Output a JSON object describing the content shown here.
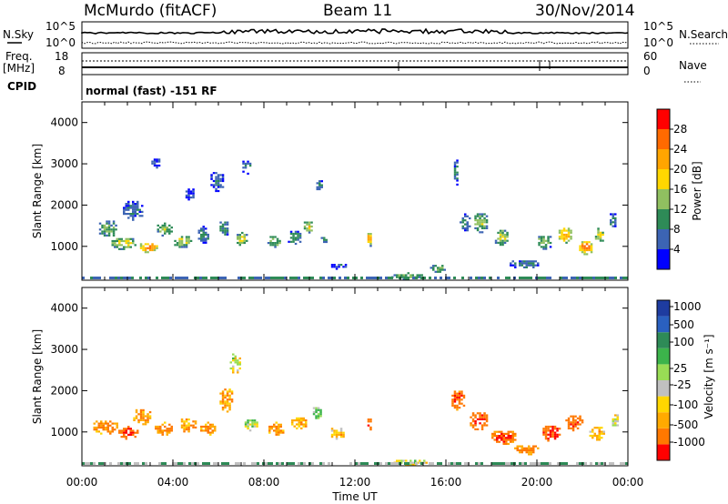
{
  "header": {
    "station": "McMurdo (fitACF)",
    "beam": "Beam 11",
    "date": "30/Nov/2014"
  },
  "top_panels": {
    "nsky_label": "N.Sky",
    "nsearch_label": "N.Search",
    "nsky_ticks": [
      "10^5",
      "10^0"
    ],
    "nsearch_ticks": [
      "10^5",
      "10^0"
    ],
    "freq_label": "Freq.",
    "freq_unit": "[MHz]",
    "freq_ticks": [
      "18",
      "8"
    ],
    "nave_label": "Nave",
    "nave_ticks": [
      "60",
      "0"
    ],
    "cpid_label": "CPID",
    "cpid_text": "normal (fast) -151 RF"
  },
  "axes": {
    "ylabel": "Slant Range [km]",
    "xlabel": "Time UT",
    "yticks": [
      "1000",
      "2000",
      "3000",
      "4000"
    ],
    "ytick_values": [
      1000,
      2000,
      3000,
      4000
    ],
    "ylim": [
      180,
      4500
    ],
    "xticks": [
      "00:00",
      "04:00",
      "08:00",
      "12:00",
      "16:00",
      "20:00",
      "00:00"
    ],
    "xtick_hours": [
      0,
      4,
      8,
      12,
      16,
      20,
      24
    ],
    "xlim_hours": [
      0,
      24
    ]
  },
  "colorbars": {
    "power": {
      "label": "Power [dB]",
      "tick_labels": [
        "4",
        "8",
        "12",
        "16",
        "20",
        "24",
        "28"
      ],
      "tick_values": [
        4,
        8,
        12,
        16,
        20,
        24,
        28
      ],
      "range": [
        0,
        32
      ],
      "colors": [
        "#0000ff",
        "#3c64b4",
        "#2e8b57",
        "#90c060",
        "#ffd700",
        "#ffa500",
        "#ff6a00",
        "#ff0000"
      ]
    },
    "velocity": {
      "label": "Velocity [m s⁻¹]",
      "tick_labels": [
        "1000",
        "500",
        "100",
        "25",
        "-25",
        "-100",
        "-500",
        "-1000"
      ],
      "colors": [
        "#1e3ca0",
        "#2a60c0",
        "#2e8b57",
        "#3cb44b",
        "#99dd55",
        "#c0c0c0",
        "#ffd700",
        "#ffaa00",
        "#ff7800",
        "#ff0000"
      ]
    }
  },
  "chart_data": [
    {
      "type": "heatmap",
      "name": "power",
      "note_x": "time in hours UT",
      "note_y": "slant range in km",
      "value_unit": "dB",
      "blobs": [
        {
          "t": 1.1,
          "r": 1450,
          "w": 0.9,
          "h": 450,
          "v": 12
        },
        {
          "t": 1.8,
          "r": 1100,
          "w": 1.2,
          "h": 300,
          "v": 18
        },
        {
          "t": 2.9,
          "r": 1000,
          "w": 0.9,
          "h": 250,
          "v": 26
        },
        {
          "t": 2.2,
          "r": 1900,
          "w": 1.0,
          "h": 500,
          "v": 8
        },
        {
          "t": 3.6,
          "r": 1450,
          "w": 0.8,
          "h": 350,
          "v": 14
        },
        {
          "t": 3.2,
          "r": 3050,
          "w": 0.5,
          "h": 250,
          "v": 6
        },
        {
          "t": 4.4,
          "r": 1150,
          "w": 0.9,
          "h": 300,
          "v": 16
        },
        {
          "t": 4.7,
          "r": 2300,
          "w": 0.5,
          "h": 300,
          "v": 6
        },
        {
          "t": 5.3,
          "r": 1300,
          "w": 0.6,
          "h": 400,
          "v": 9
        },
        {
          "t": 5.9,
          "r": 2600,
          "w": 0.7,
          "h": 500,
          "v": 7
        },
        {
          "t": 6.2,
          "r": 1450,
          "w": 0.5,
          "h": 400,
          "v": 10
        },
        {
          "t": 7.0,
          "r": 1200,
          "w": 0.6,
          "h": 300,
          "v": 18
        },
        {
          "t": 7.2,
          "r": 2950,
          "w": 0.5,
          "h": 350,
          "v": 8
        },
        {
          "t": 8.4,
          "r": 1150,
          "w": 0.7,
          "h": 300,
          "v": 14
        },
        {
          "t": 9.3,
          "r": 1250,
          "w": 0.7,
          "h": 350,
          "v": 10
        },
        {
          "t": 9.9,
          "r": 1500,
          "w": 0.5,
          "h": 300,
          "v": 18
        },
        {
          "t": 10.4,
          "r": 2500,
          "w": 0.4,
          "h": 300,
          "v": 7
        },
        {
          "t": 10.6,
          "r": 1200,
          "w": 0.4,
          "h": 250,
          "v": 9
        },
        {
          "t": 11.3,
          "r": 550,
          "w": 0.9,
          "h": 150,
          "v": 6
        },
        {
          "t": 12.6,
          "r": 1200,
          "w": 0.3,
          "h": 350,
          "v": 22
        },
        {
          "t": 14.3,
          "r": 300,
          "w": 1.6,
          "h": 150,
          "v": 14
        },
        {
          "t": 15.6,
          "r": 500,
          "w": 0.8,
          "h": 200,
          "v": 12
        },
        {
          "t": 16.4,
          "r": 2800,
          "w": 0.3,
          "h": 700,
          "v": 8
        },
        {
          "t": 16.8,
          "r": 1600,
          "w": 0.6,
          "h": 400,
          "v": 10
        },
        {
          "t": 17.5,
          "r": 1600,
          "w": 0.7,
          "h": 500,
          "v": 14
        },
        {
          "t": 18.4,
          "r": 1250,
          "w": 0.7,
          "h": 400,
          "v": 16
        },
        {
          "t": 19.4,
          "r": 600,
          "w": 1.4,
          "h": 220,
          "v": 8
        },
        {
          "t": 20.3,
          "r": 1150,
          "w": 0.7,
          "h": 400,
          "v": 14
        },
        {
          "t": 21.2,
          "r": 1300,
          "w": 0.7,
          "h": 400,
          "v": 22
        },
        {
          "t": 22.1,
          "r": 1000,
          "w": 0.7,
          "h": 350,
          "v": 27
        },
        {
          "t": 22.7,
          "r": 1300,
          "w": 0.5,
          "h": 400,
          "v": 18
        },
        {
          "t": 23.3,
          "r": 1650,
          "w": 0.4,
          "h": 400,
          "v": 9
        }
      ]
    },
    {
      "type": "heatmap",
      "name": "velocity",
      "value_unit": "m s-1",
      "blobs": [
        {
          "t": 1.0,
          "r": 1150,
          "w": 1.2,
          "h": 350,
          "v": -150
        },
        {
          "t": 2.0,
          "r": 1000,
          "w": 1.0,
          "h": 300,
          "v": -300
        },
        {
          "t": 2.6,
          "r": 1400,
          "w": 0.9,
          "h": 400,
          "v": -120
        },
        {
          "t": 3.6,
          "r": 1100,
          "w": 1.0,
          "h": 300,
          "v": -180
        },
        {
          "t": 4.6,
          "r": 1200,
          "w": 0.9,
          "h": 350,
          "v": -60
        },
        {
          "t": 5.5,
          "r": 1100,
          "w": 0.8,
          "h": 300,
          "v": -120
        },
        {
          "t": 6.3,
          "r": 1800,
          "w": 0.7,
          "h": 600,
          "v": -90
        },
        {
          "t": 6.7,
          "r": 2700,
          "w": 0.6,
          "h": 500,
          "v": 30
        },
        {
          "t": 7.4,
          "r": 1200,
          "w": 0.7,
          "h": 300,
          "v": 80
        },
        {
          "t": 8.5,
          "r": 1100,
          "w": 0.8,
          "h": 300,
          "v": -110
        },
        {
          "t": 9.5,
          "r": 1250,
          "w": 0.8,
          "h": 300,
          "v": -70
        },
        {
          "t": 10.3,
          "r": 1500,
          "w": 0.5,
          "h": 300,
          "v": 150
        },
        {
          "t": 11.2,
          "r": 1000,
          "w": 0.7,
          "h": 300,
          "v": -40
        },
        {
          "t": 12.6,
          "r": 1200,
          "w": 0.3,
          "h": 350,
          "v": -200
        },
        {
          "t": 14.4,
          "r": 300,
          "w": 1.6,
          "h": 150,
          "v": 30
        },
        {
          "t": 16.5,
          "r": 1800,
          "w": 0.7,
          "h": 500,
          "v": -260
        },
        {
          "t": 17.4,
          "r": 1300,
          "w": 0.9,
          "h": 450,
          "v": -280
        },
        {
          "t": 18.5,
          "r": 900,
          "w": 1.2,
          "h": 350,
          "v": -250
        },
        {
          "t": 19.5,
          "r": 600,
          "w": 1.2,
          "h": 250,
          "v": -150
        },
        {
          "t": 20.6,
          "r": 1000,
          "w": 0.9,
          "h": 400,
          "v": -330
        },
        {
          "t": 21.6,
          "r": 1250,
          "w": 0.9,
          "h": 400,
          "v": -250
        },
        {
          "t": 22.6,
          "r": 1000,
          "w": 0.8,
          "h": 350,
          "v": -60
        },
        {
          "t": 23.4,
          "r": 1300,
          "w": 0.4,
          "h": 350,
          "v": 20
        }
      ]
    }
  ]
}
